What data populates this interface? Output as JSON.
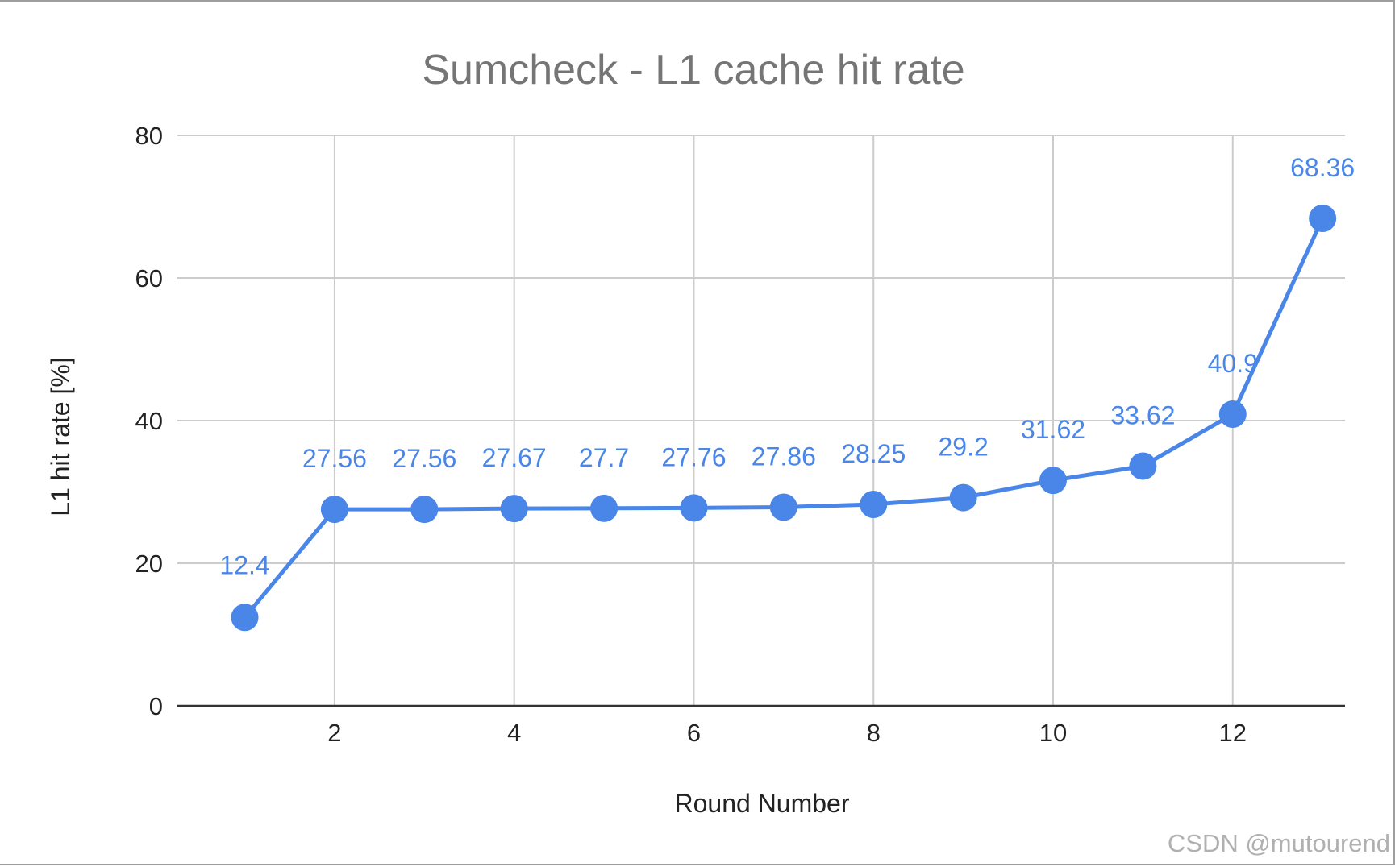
{
  "chart_data": {
    "type": "line",
    "title": "Sumcheck - L1 cache hit rate",
    "xlabel": "Round Number",
    "ylabel": "L1 hit rate [%]",
    "x": [
      1,
      2,
      3,
      4,
      5,
      6,
      7,
      8,
      9,
      10,
      11,
      12,
      13
    ],
    "series": [
      {
        "values": [
          12.4,
          27.56,
          27.56,
          27.67,
          27.7,
          27.76,
          27.86,
          28.25,
          29.2,
          31.62,
          33.62,
          40.9,
          68.36
        ],
        "labels": [
          "12.4",
          "27.56",
          "27.56",
          "27.67",
          "27.7",
          "27.76",
          "27.86",
          "28.25",
          "29.2",
          "31.62",
          "33.62",
          "40.9",
          "68.36"
        ]
      }
    ],
    "xticks": [
      2,
      4,
      6,
      8,
      10,
      12
    ],
    "yticks": [
      0,
      20,
      40,
      60,
      80
    ],
    "xlim": [
      0.25,
      13.25
    ],
    "ylim": [
      0,
      80
    ],
    "grid": true,
    "legend": "none",
    "colors": {
      "series": "#4a86e8",
      "grid": "#cccccc",
      "axis": "#333333"
    }
  },
  "watermark": "CSDN @mutourend"
}
